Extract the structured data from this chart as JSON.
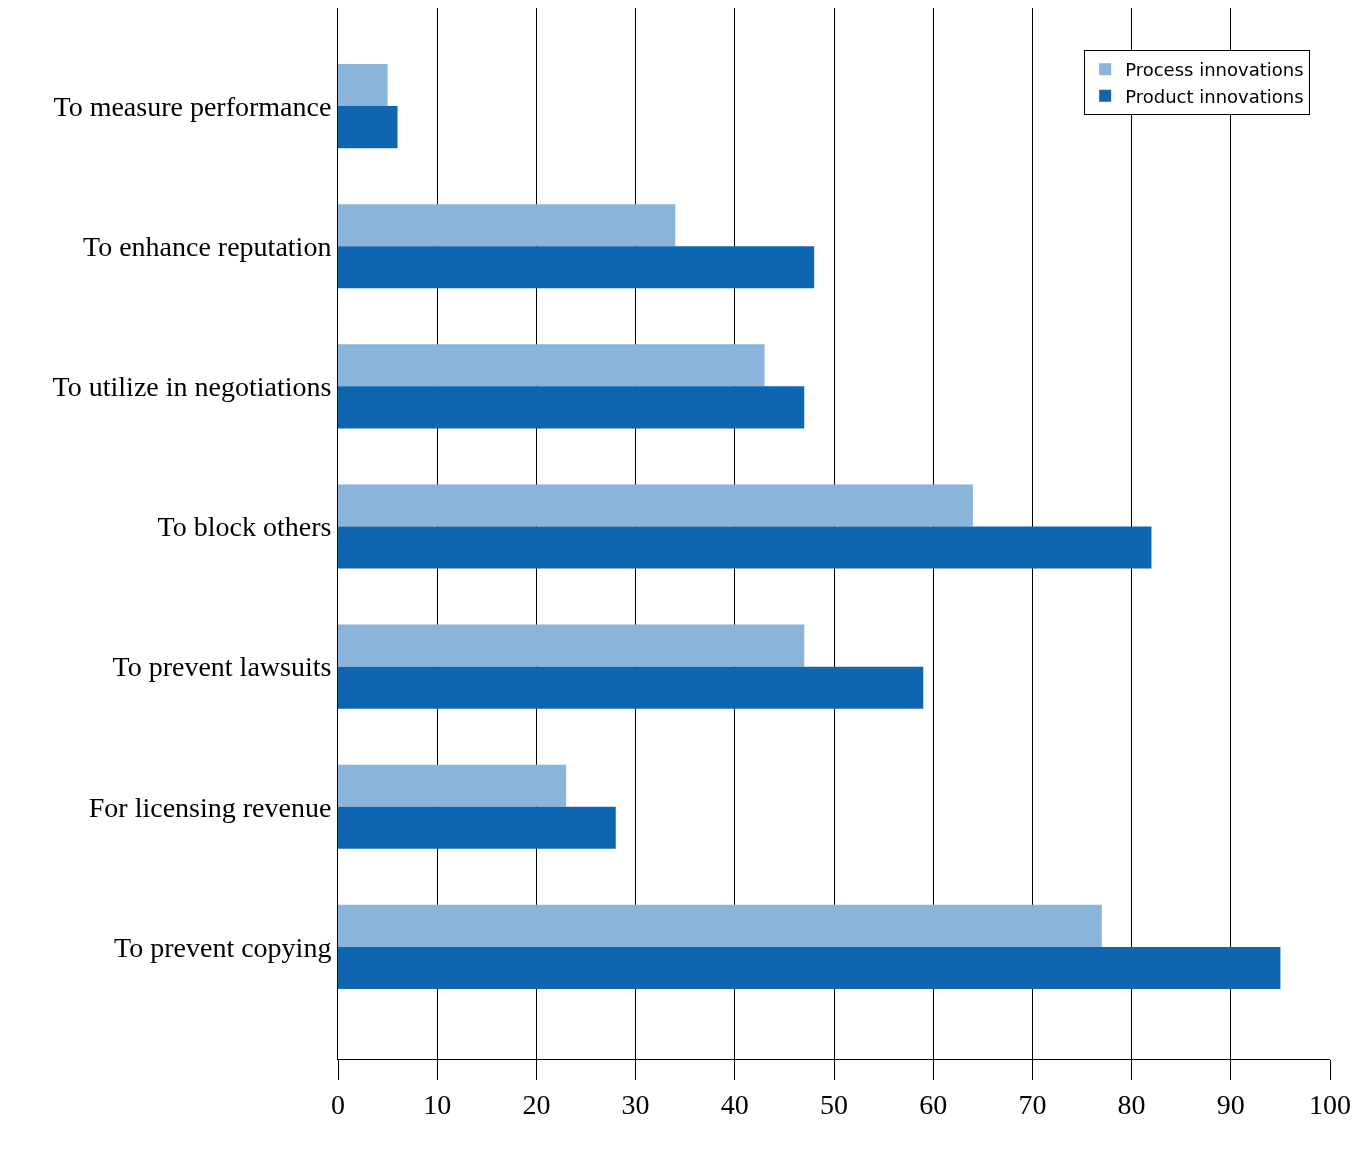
{
  "chart_data": {
    "type": "bar",
    "orientation": "horizontal",
    "categories": [
      "To measure performance",
      "To enhance reputation",
      "To utilize in negotiations",
      "To block others",
      "To prevent lawsuits",
      "For licensing revenue",
      "To prevent copying"
    ],
    "series": [
      {
        "name": "Process innovations",
        "color": "#8ab4d9",
        "values": [
          5,
          34,
          43,
          64,
          47,
          23,
          77
        ]
      },
      {
        "name": "Product innovations",
        "color": "#0e66b0",
        "values": [
          6,
          48,
          47,
          82,
          59,
          28,
          95
        ]
      }
    ],
    "xlim": [
      0,
      100
    ],
    "xticks": [
      0,
      10,
      20,
      30,
      40,
      50,
      60,
      70,
      80,
      90,
      100
    ],
    "grid": "x",
    "legend": "top right"
  }
}
